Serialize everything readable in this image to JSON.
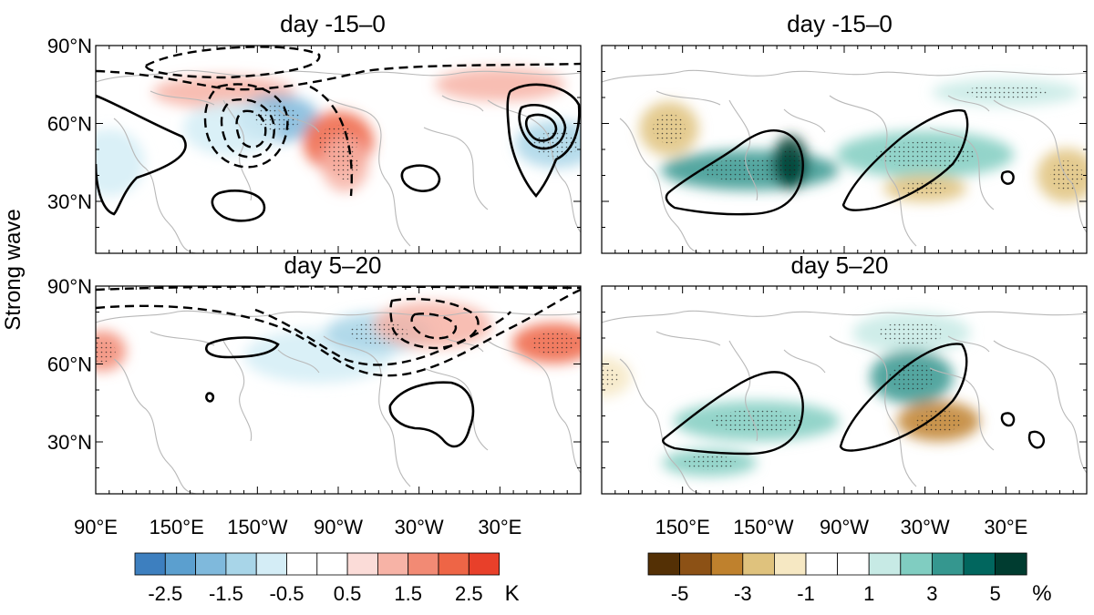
{
  "chart_data": {
    "type": "heatmap",
    "figure_label": "Strong wave",
    "panels": [
      {
        "title": "day -15–0",
        "field": "temperature anomaly",
        "unit": "K",
        "contours": "dashed negative / solid positive",
        "blobs": [
          {
            "name": "warm-alaska-w",
            "lon": 185,
            "lat": 72,
            "value": 1.0,
            "rx": 24,
            "ry": 5
          },
          {
            "name": "cold-np",
            "lon": 225,
            "lat": 62,
            "value": -2.0,
            "rx": 14,
            "ry": 7
          },
          {
            "name": "cold-pacific-w",
            "lon": 190,
            "lat": 58,
            "value": -1.0,
            "rx": 16,
            "ry": 8
          },
          {
            "name": "warm-canada",
            "lon": 270,
            "lat": 53,
            "value": 2.4,
            "rx": 12,
            "ry": 9
          },
          {
            "name": "warm-canada-s",
            "lon": 275,
            "lat": 44,
            "value": 1.3,
            "rx": 8,
            "ry": 8
          },
          {
            "name": "warm-arctic-e",
            "lon": 30,
            "lat": 75,
            "value": 1.0,
            "rx": 22,
            "ry": 5
          },
          {
            "name": "cold-siberia",
            "lon": 72,
            "lat": 52,
            "value": -1.2,
            "rx": 14,
            "ry": 7
          },
          {
            "name": "cold-asia-w",
            "lon": 100,
            "lat": 45,
            "value": -1.0,
            "rx": 12,
            "ry": 10
          }
        ]
      },
      {
        "title": "day -15–0",
        "field": "precipitation anomaly",
        "unit": "%",
        "contours": "storm track outline",
        "blobs": [
          {
            "name": "brown-japan",
            "lon": 140,
            "lat": 58,
            "value": -3.0,
            "rx": 10,
            "ry": 8
          },
          {
            "name": "green-pacific",
            "lon": 200,
            "lat": 42,
            "value": 3.5,
            "rx": 30,
            "ry": 6
          },
          {
            "name": "green-pacific-core",
            "lon": 230,
            "lat": 45,
            "value": 5.0,
            "rx": 6,
            "ry": 8
          },
          {
            "name": "green-atlantic",
            "lon": 330,
            "lat": 48,
            "value": 2.0,
            "rx": 30,
            "ry": 7
          },
          {
            "name": "brown-atlantic",
            "lon": 330,
            "lat": 35,
            "value": -2.5,
            "rx": 14,
            "ry": 4
          },
          {
            "name": "brown-india",
            "lon": 75,
            "lat": 40,
            "value": -2.5,
            "rx": 10,
            "ry": 8
          },
          {
            "name": "green-arctic",
            "lon": 30,
            "lat": 72,
            "value": 1.2,
            "rx": 25,
            "ry": 4
          }
        ]
      },
      {
        "title": "day 5–20",
        "field": "temperature anomaly",
        "unit": "K",
        "contours": "dashed negative / solid positive",
        "blobs": [
          {
            "name": "warm-asia-e",
            "lon": 95,
            "lat": 65,
            "value": 1.5,
            "rx": 8,
            "ry": 6
          },
          {
            "name": "cold-canada",
            "lon": 255,
            "lat": 63,
            "value": -1.0,
            "rx": 25,
            "ry": 8
          },
          {
            "name": "cold-east-can",
            "lon": 300,
            "lat": 72,
            "value": -1.5,
            "rx": 18,
            "ry": 6
          },
          {
            "name": "warm-europe",
            "lon": 340,
            "lat": 75,
            "value": 1.0,
            "rx": 20,
            "ry": 7
          },
          {
            "name": "warm-siberia",
            "lon": 70,
            "lat": 68,
            "value": 2.3,
            "rx": 14,
            "ry": 6
          }
        ]
      },
      {
        "title": "day 5–20",
        "field": "precipitation anomaly",
        "unit": "%",
        "contours": "storm track outline",
        "blobs": [
          {
            "name": "green-pacific",
            "lon": 205,
            "lat": 38,
            "value": 2.5,
            "rx": 28,
            "ry": 6
          },
          {
            "name": "green-arctic",
            "lon": 320,
            "lat": 72,
            "value": 1.5,
            "rx": 20,
            "ry": 6
          },
          {
            "name": "green-atlantic",
            "lon": 320,
            "lat": 55,
            "value": 3.0,
            "rx": 14,
            "ry": 8
          },
          {
            "name": "brown-atlantic",
            "lon": 340,
            "lat": 38,
            "value": -3.5,
            "rx": 14,
            "ry": 6
          },
          {
            "name": "brown-india",
            "lon": 90,
            "lat": 55,
            "value": -2.0,
            "rx": 10,
            "ry": 6
          },
          {
            "name": "green-subtrop",
            "lon": 170,
            "lat": 22,
            "value": 2.0,
            "rx": 16,
            "ry": 4
          }
        ]
      }
    ],
    "y_ticks": [
      {
        "lat": 90,
        "label": "90°N"
      },
      {
        "lat": 60,
        "label": "60°N"
      },
      {
        "lat": 30,
        "label": "30°N"
      }
    ],
    "x_ticks_left": [
      {
        "lon": 90,
        "label": "90°E"
      },
      {
        "lon": 150,
        "label": "150°E"
      },
      {
        "lon": 210,
        "label": "150°W"
      },
      {
        "lon": 270,
        "label": "90°W"
      },
      {
        "lon": 330,
        "label": "30°W"
      },
      {
        "lon": 390,
        "label": "30°E"
      }
    ],
    "x_ticks_right": [
      {
        "lon": 150,
        "label": "150°E"
      },
      {
        "lon": 210,
        "label": "150°W"
      },
      {
        "lon": 270,
        "label": "90°W"
      },
      {
        "lon": 330,
        "label": "30°W"
      },
      {
        "lon": 390,
        "label": "30°E"
      }
    ],
    "colorbar_temperature": {
      "unit": "K",
      "colors": [
        "#3d7fbf",
        "#5b9fcf",
        "#7fb9dc",
        "#a8d5e8",
        "#d4edf6",
        "#ffffff",
        "#ffffff",
        "#fbdcd8",
        "#f7b3a6",
        "#f28a74",
        "#ee6546",
        "#e8402a"
      ],
      "labels": [
        "-2.5",
        "-1.5",
        "-0.5",
        "0.5",
        "1.5",
        "2.5"
      ]
    },
    "colorbar_precip": {
      "unit": "%",
      "colors": [
        "#543005",
        "#8c5115",
        "#bf812d",
        "#dfc27d",
        "#f6e8c3",
        "#ffffff",
        "#ffffff",
        "#c7eae5",
        "#80cdc1",
        "#35978f",
        "#01665e",
        "#003c30"
      ],
      "labels": [
        "-5",
        "-3",
        "-1",
        "1",
        "3",
        "5"
      ]
    }
  }
}
